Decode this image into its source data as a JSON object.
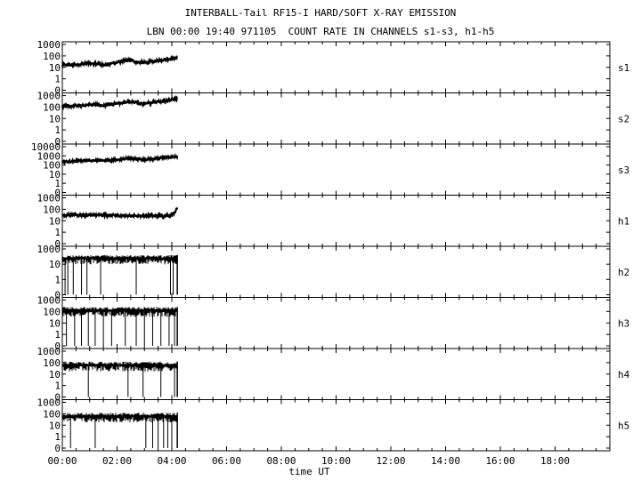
{
  "chart_data": {
    "type": "line",
    "title": "INTERBALL-Tail RF15-I HARD/SOFT X-RAY EMISSION",
    "subtitle": "LBN 00:00 19:40 971105  COUNT RATE IN CHANNELS s1-s3, h1-h5",
    "xlabel": "time UT",
    "x_ticks": [
      "00:00",
      "02:00",
      "04:00",
      "06:00",
      "08:00",
      "10:00",
      "12:00",
      "14:00",
      "16:00",
      "18:00"
    ],
    "x_range_hours": [
      0,
      20
    ],
    "y_scale": "log",
    "grid": false,
    "panels": [
      {
        "name": "s1",
        "y_ticks": [
          "1000",
          "100",
          "10",
          "1",
          "0"
        ],
        "style": "line",
        "data_end_hour": 4.2,
        "x": [
          0,
          0.5,
          1.0,
          1.3,
          1.5,
          1.8,
          2.0,
          2.3,
          2.5,
          2.7,
          3.0,
          3.3,
          3.5,
          3.8,
          4.0,
          4.2
        ],
        "y": [
          15,
          18,
          22,
          20,
          16,
          22,
          28,
          35,
          42,
          30,
          26,
          32,
          40,
          52,
          60,
          65
        ]
      },
      {
        "name": "s2",
        "y_ticks": [
          "1000",
          "100",
          "10",
          "1",
          "0"
        ],
        "style": "line",
        "data_end_hour": 4.2,
        "x": [
          0,
          0.5,
          1.0,
          1.3,
          1.5,
          1.8,
          2.0,
          2.3,
          2.5,
          2.7,
          3.0,
          3.3,
          3.5,
          3.8,
          4.0,
          4.2
        ],
        "y": [
          110,
          130,
          160,
          150,
          130,
          170,
          200,
          250,
          300,
          230,
          210,
          250,
          300,
          380,
          450,
          500
        ]
      },
      {
        "name": "s3",
        "y_ticks": [
          "10000",
          "1000",
          "100",
          "10",
          "1",
          "0"
        ],
        "style": "line",
        "data_end_hour": 4.2,
        "x": [
          0,
          0.5,
          1.0,
          1.5,
          2.0,
          2.3,
          2.5,
          2.7,
          3.0,
          3.3,
          3.5,
          3.8,
          4.0,
          4.2
        ],
        "y": [
          220,
          280,
          300,
          310,
          380,
          460,
          520,
          440,
          400,
          460,
          560,
          700,
          800,
          820
        ]
      },
      {
        "name": "h1",
        "y_ticks": [
          "1000",
          "100",
          "10",
          "1",
          "0"
        ],
        "style": "line",
        "data_end_hour": 4.2,
        "x": [
          0,
          0.5,
          1.0,
          1.5,
          2.0,
          2.5,
          3.0,
          3.5,
          3.9,
          4.05,
          4.15,
          4.2
        ],
        "y": [
          30,
          33,
          31,
          30,
          29,
          28,
          27,
          26,
          27,
          40,
          80,
          130
        ]
      },
      {
        "name": "h2",
        "y_ticks": [
          "1000",
          "10",
          "1",
          "0"
        ],
        "style": "noise",
        "data_end_hour": 4.2,
        "level": 100,
        "drops_to_zero": [
          0.1,
          0.2,
          0.4,
          0.7,
          0.9,
          1.4,
          2.7,
          3.95,
          4.05
        ]
      },
      {
        "name": "h3",
        "y_ticks": [
          "1000",
          "100",
          "10",
          "1",
          "0"
        ],
        "style": "noise",
        "data_end_hour": 4.2,
        "level": 100,
        "drops_to_zero": [
          0.15,
          0.45,
          0.7,
          0.95,
          1.2,
          1.5,
          1.8,
          2.3,
          2.7,
          3.0,
          3.3,
          3.6,
          3.9,
          4.1
        ]
      },
      {
        "name": "h4",
        "y_ticks": [
          "1000",
          "100",
          "10",
          "1",
          "0"
        ],
        "style": "noise",
        "data_end_hour": 4.2,
        "level": 50,
        "drops_to_zero": [
          0.95,
          2.4,
          2.95,
          3.6,
          4.1
        ]
      },
      {
        "name": "h5",
        "y_ticks": [
          "1000",
          "100",
          "10",
          "1",
          "0"
        ],
        "style": "noise",
        "data_end_hour": 4.2,
        "level": 50,
        "drops_to_zero": [
          0.3,
          1.2,
          3.05,
          3.3,
          3.5,
          3.7,
          3.85,
          4.0
        ]
      }
    ]
  }
}
